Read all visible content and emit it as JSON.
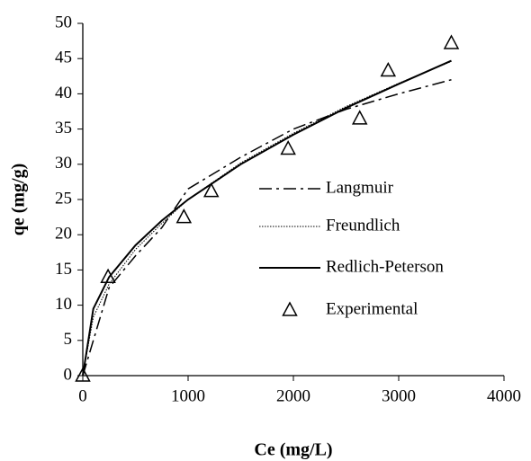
{
  "chart_data": {
    "type": "line",
    "x_label": "Ce (mg/L)",
    "y_label": "qe (mg/g)",
    "xlim": [
      0,
      4000
    ],
    "xticks": [
      0,
      1000,
      2000,
      3000,
      4000
    ],
    "ylim": [
      0,
      50
    ],
    "yticks": [
      0,
      5,
      10,
      15,
      20,
      25,
      30,
      35,
      40,
      45,
      50
    ],
    "grid": false,
    "series": [
      {
        "name": "Langmuir",
        "color": "#000000",
        "style": "dashdot",
        "kind": "line",
        "x": [
          0,
          100,
          250,
          500,
          750,
          1000,
          1500,
          2000,
          2500,
          3000,
          3500
        ],
        "values": [
          0,
          5,
          12.5,
          17,
          21,
          26.5,
          31,
          35,
          37.8,
          40,
          42
        ]
      },
      {
        "name": "Freundlich",
        "color": "#000000",
        "style": "dotted",
        "kind": "line",
        "x": [
          0,
          100,
          250,
          500,
          750,
          1000,
          1500,
          2000,
          2500,
          3000,
          3500
        ],
        "values": [
          0,
          8.3,
          13,
          17.9,
          21.6,
          25,
          30.2,
          34.4,
          38.2,
          41.5,
          44.6
        ]
      },
      {
        "name": "Redlich-Peterson",
        "color": "#000000",
        "style": "solid",
        "kind": "line",
        "x": [
          0,
          100,
          250,
          500,
          750,
          1000,
          1500,
          2000,
          2500,
          3000,
          3500
        ],
        "values": [
          0,
          9.5,
          14,
          18.5,
          22,
          25,
          30,
          34.2,
          38,
          41.4,
          44.7
        ]
      },
      {
        "name": "Experimental",
        "color": "#000000",
        "style": "triangle",
        "kind": "scatter",
        "x": [
          0,
          240,
          960,
          1220,
          1950,
          2630,
          2900,
          3500
        ],
        "values": [
          0,
          14,
          22.5,
          26.2,
          32.2,
          36.5,
          43.3,
          47.2
        ]
      }
    ]
  }
}
